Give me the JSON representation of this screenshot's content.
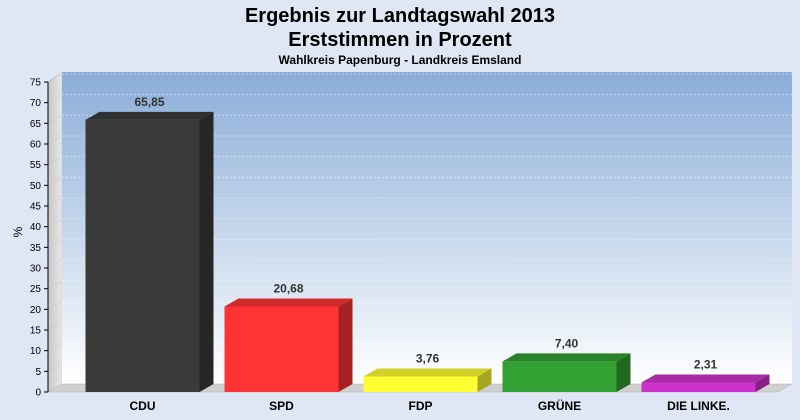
{
  "chart_data": {
    "type": "bar",
    "title": "Ergebnis zur Landtagswahl 2013",
    "title_line2": "Erststimmen in Prozent",
    "subtitle": "Wahlkreis Papenburg - Landkreis Emsland",
    "ylabel": "%",
    "ylim": [
      0,
      75
    ],
    "yticks": [
      0,
      5,
      10,
      15,
      20,
      25,
      30,
      35,
      40,
      45,
      50,
      55,
      60,
      65,
      70,
      75
    ],
    "grid": true,
    "categories": [
      "CDU",
      "SPD",
      "FDP",
      "GRÜNE",
      "DIE LINKE."
    ],
    "values": [
      65.85,
      20.68,
      3.76,
      7.4,
      2.31
    ],
    "value_labels": [
      "65,85",
      "20,68",
      "3,76",
      "7,40",
      "2,31"
    ],
    "colors": [
      "#3a3a3a",
      "#ff3333",
      "#ffff33",
      "#33a033",
      "#cc33cc"
    ]
  }
}
